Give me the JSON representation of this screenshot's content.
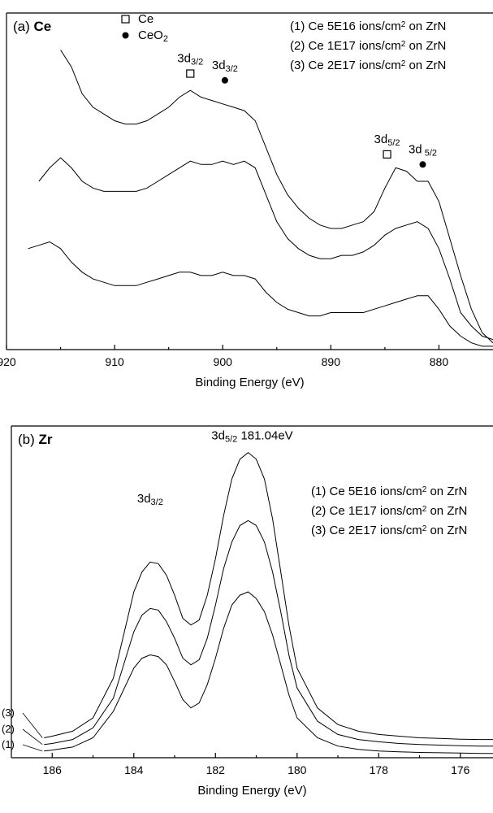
{
  "chart_data": [
    {
      "type": "line",
      "panel_label": "(a)",
      "title": "Ce",
      "xlabel": "Binding Energy (eV)",
      "ylabel": "",
      "x_reversed": true,
      "xlim": [
        920,
        875
      ],
      "ylim": [
        0,
        100
      ],
      "grid": false,
      "y_ticks": false,
      "x_ticks": [
        "920",
        "910",
        "900",
        "890",
        "880"
      ],
      "legend_markers": [
        {
          "name": "Ce",
          "symbol": "open-square"
        },
        {
          "name": "CeO",
          "sub": "2",
          "symbol": "filled-circle"
        }
      ],
      "legend_series": [
        {
          "prefix": "(1) Ce 5E16 ions/cm",
          "sup": "2",
          "suffix": " on ZrN"
        },
        {
          "prefix": "(2) Ce 1E17 ions/cm",
          "sup": "2",
          "suffix": " on ZrN"
        },
        {
          "prefix": "(3) Ce 2E17 ions/cm",
          "sup": "2",
          "suffix": " on ZrN"
        }
      ],
      "annotations": [
        {
          "main": "3d",
          "sub": "3/2",
          "x": 903.0,
          "y": 82,
          "marker": "open-square"
        },
        {
          "main": "3d",
          "sub": "3/2",
          "x": 899.8,
          "y": 80,
          "marker": "filled-circle"
        },
        {
          "main": "3d",
          "sub": "5/2",
          "x": 884.8,
          "y": 58,
          "marker": "open-square"
        },
        {
          "main": "3d",
          "sub": " 5/2",
          "x": 881.5,
          "y": 55,
          "marker": "filled-circle"
        }
      ],
      "x": [
        919,
        918,
        917,
        916,
        915,
        914,
        913,
        912,
        911,
        910,
        909,
        908,
        907,
        906,
        905,
        904,
        903,
        902,
        901,
        900,
        899,
        898,
        897,
        896,
        895,
        894,
        893,
        892,
        891,
        890,
        889,
        888,
        887,
        886,
        885,
        884,
        883,
        882,
        881,
        880,
        879,
        878,
        877,
        876,
        875
      ],
      "series": [
        {
          "values": [
            null,
            null,
            null,
            null,
            89,
            84,
            76,
            72,
            70,
            68,
            67,
            67,
            68,
            70,
            72,
            75,
            77,
            75,
            74,
            73,
            72,
            71,
            68,
            60,
            52,
            46,
            42,
            39,
            37,
            36,
            36,
            37,
            38,
            41,
            48,
            54,
            53,
            50,
            50,
            44,
            33,
            22,
            12,
            5,
            2
          ]
        },
        {
          "values": [
            null,
            null,
            50,
            54,
            57,
            54,
            50,
            48,
            47,
            47,
            47,
            47,
            48,
            50,
            52,
            54,
            56,
            55,
            55,
            56,
            55,
            56,
            54,
            46,
            38,
            33,
            30,
            28,
            27,
            27,
            28,
            28,
            29,
            31,
            34,
            36,
            37,
            38,
            36,
            30,
            21,
            11,
            7,
            4,
            3
          ]
        },
        {
          "values": [
            null,
            30,
            31,
            32,
            30,
            26,
            23,
            21,
            20,
            19,
            19,
            19,
            20,
            21,
            22,
            23,
            23,
            22,
            22,
            23,
            22,
            22,
            21,
            17,
            14,
            12,
            11,
            10,
            10,
            11,
            11,
            11,
            11,
            12,
            13,
            14,
            15,
            16,
            16,
            12,
            7,
            4,
            2,
            1,
            1
          ]
        }
      ]
    },
    {
      "type": "line",
      "panel_label": "(b)",
      "title": "Zr",
      "xlabel": "Binding Energy (eV)",
      "ylabel": "",
      "x_reversed": true,
      "xlim": [
        187,
        175.2
      ],
      "ylim": [
        0,
        100
      ],
      "grid": false,
      "y_ticks": false,
      "x_ticks": [
        "186",
        "184",
        "182",
        "180",
        "178",
        "176"
      ],
      "legend_series": [
        {
          "prefix": "(1) Ce 5E16 ions/cm",
          "sup": "2",
          "suffix": " on ZrN"
        },
        {
          "prefix": "(2) Ce 1E17 ions/cm",
          "sup": "2",
          "suffix": " on ZrN"
        },
        {
          "prefix": "(3) Ce 2E17 ions/cm",
          "sup": "2",
          "suffix": " on ZrN"
        }
      ],
      "curve_labels": [
        "(3)",
        "(2)",
        "(1)"
      ],
      "annotations": [
        {
          "main": "3d",
          "sub": "3/2",
          "value_text": "",
          "x": 183.6,
          "y": 74
        },
        {
          "main": "3d",
          "sub": "5/2",
          "value_text": " 181.04eV",
          "x": 181.1,
          "y": 93
        }
      ],
      "x": [
        186.2,
        186,
        185.5,
        185,
        184.5,
        184,
        183.8,
        183.6,
        183.4,
        183.2,
        183,
        182.8,
        182.6,
        182.4,
        182.2,
        182,
        181.8,
        181.6,
        181.4,
        181.2,
        181,
        180.8,
        180.6,
        180.4,
        180.2,
        180,
        179.5,
        179,
        178.5,
        178,
        177.5,
        177,
        176.5,
        176,
        175.5,
        175.2
      ],
      "series": [
        {
          "name": "(1)",
          "values": [
            2,
            2.3,
            3.2,
            6,
            14,
            27,
            30,
            31,
            30.5,
            28,
            23,
            17.5,
            15,
            16.5,
            22,
            30,
            39,
            46,
            49,
            50,
            48,
            44,
            37,
            28,
            19,
            12,
            6,
            3.5,
            2.5,
            2,
            1.8,
            1.6,
            1.5,
            1.4,
            1.3,
            1.3
          ]
        },
        {
          "name": "(2)",
          "values": [
            4,
            4.3,
            5.5,
            9,
            18,
            38,
            43,
            45,
            44.5,
            41,
            36,
            30,
            28,
            29.5,
            36,
            46,
            57,
            65,
            70,
            71.5,
            70,
            65,
            56,
            44,
            31,
            21,
            11,
            7,
            5.5,
            4.8,
            4.3,
            4,
            3.8,
            3.6,
            3.5,
            3.5
          ]
        },
        {
          "name": "(3)",
          "values": [
            6,
            6.5,
            8,
            12,
            24,
            50,
            56,
            59,
            58.5,
            55,
            49,
            42,
            40,
            41.5,
            49,
            60,
            73,
            84,
            90,
            92,
            90,
            84,
            72,
            56,
            40,
            27,
            15,
            10,
            8,
            7,
            6.5,
            6,
            5.8,
            5.6,
            5.5,
            5.5
          ]
        }
      ]
    }
  ]
}
